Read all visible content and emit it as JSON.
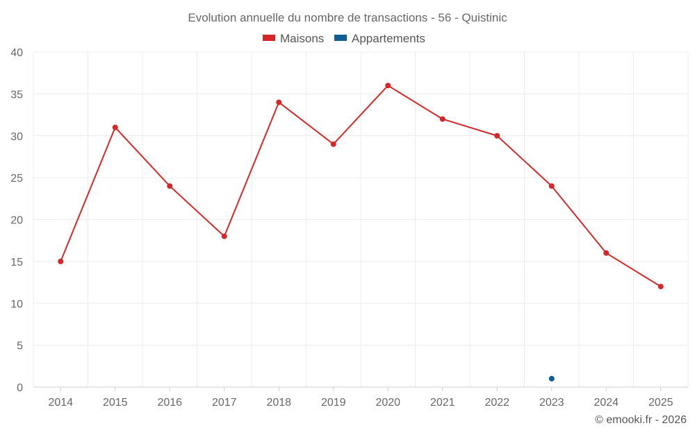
{
  "chart_data": {
    "type": "line",
    "title": "Evolution annuelle du nombre de transactions - 56 - Quistinic",
    "categories": [
      "2014",
      "2015",
      "2016",
      "2017",
      "2018",
      "2019",
      "2020",
      "2021",
      "2022",
      "2023",
      "2024",
      "2025"
    ],
    "series": [
      {
        "name": "Maisons",
        "color": "#d62728",
        "values": [
          15,
          31,
          24,
          18,
          34,
          29,
          36,
          32,
          30,
          24,
          16,
          12
        ]
      },
      {
        "name": "Appartements",
        "color": "#0f5e94",
        "values": [
          null,
          null,
          null,
          null,
          null,
          null,
          null,
          null,
          null,
          1,
          null,
          null
        ]
      }
    ],
    "yticks": [
      "0",
      "5",
      "10",
      "15",
      "20",
      "25",
      "30",
      "35",
      "40"
    ],
    "ylim": [
      0,
      40
    ],
    "grid": true,
    "legend_position": "top-center",
    "credit": "© emooki.fr - 2026"
  }
}
